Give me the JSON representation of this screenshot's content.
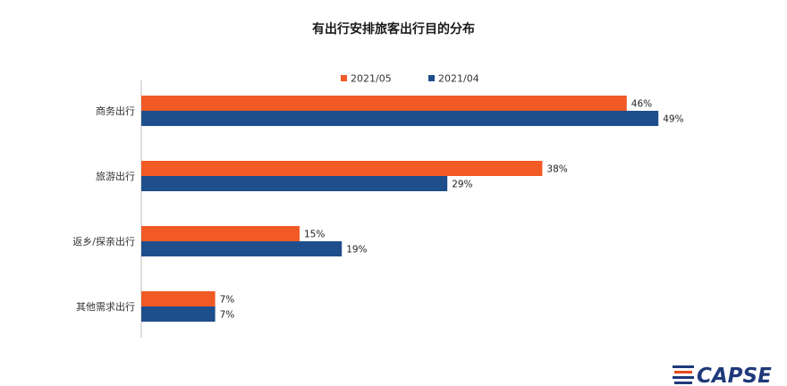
{
  "chart_data": {
    "type": "bar",
    "orientation": "horizontal",
    "title": "有出行安排旅客出行目的分布",
    "categories": [
      "商务出行",
      "旅游出行",
      "返乡/探亲出行",
      "其他需求出行"
    ],
    "series": [
      {
        "name": "2021/05",
        "values": [
          46,
          38,
          15,
          7
        ],
        "labels": [
          "46%",
          "38%",
          "15%",
          "7%"
        ],
        "color": "#F15A24"
      },
      {
        "name": "2021/04",
        "values": [
          49,
          29,
          19,
          7
        ],
        "labels": [
          "49%",
          "29%",
          "19%",
          "7%"
        ],
        "color": "#1F4E8C"
      }
    ],
    "xlim": [
      0,
      55
    ],
    "value_unit": "%",
    "grid": false,
    "legend_position": "top"
  },
  "logo": {
    "text": "CAPSE",
    "icon": "capse-stripes-logo-icon",
    "colors": [
      "#1f3a7a",
      "#e8491d"
    ]
  }
}
